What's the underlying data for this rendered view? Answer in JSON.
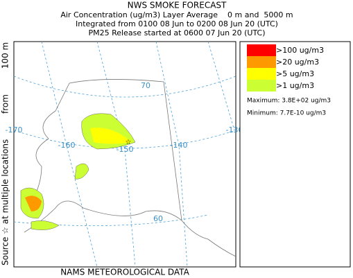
{
  "header": {
    "title": "NWS SMOKE FORECAST",
    "lines": [
      "Air Concentration (ug/m3) Layer Average    0 m and  5000 m",
      "Integrated from 0100 08 Jun to 0200 08 Jun 20 (UTC)",
      "PM25 Release started at 0600 07 Jun 20 (UTC)"
    ]
  },
  "side_label": [
    "Source ☆",
    "at multiple locations",
    "from",
    "100 m"
  ],
  "map": {
    "lon_labels": [
      "-170",
      "-160",
      "-150",
      "-140",
      "-130"
    ],
    "lat_labels": [
      "70",
      "60"
    ]
  },
  "legend": {
    "items": [
      {
        "label": ">100 ug/m3",
        "color": "#ff0000"
      },
      {
        "label": ">20 ug/m3",
        "color": "#ff9900"
      },
      {
        "label": ">5 ug/m3",
        "color": "#ffff00"
      },
      {
        "label": ">1 ug/m3",
        "color": "#ccff33"
      }
    ],
    "maximum": "Maximum: 3.8E+02 ug/m3",
    "minimum": "Minimum: 7.7E-10 ug/m3"
  },
  "footer": "NAMS METEOROLOGICAL DATA"
}
